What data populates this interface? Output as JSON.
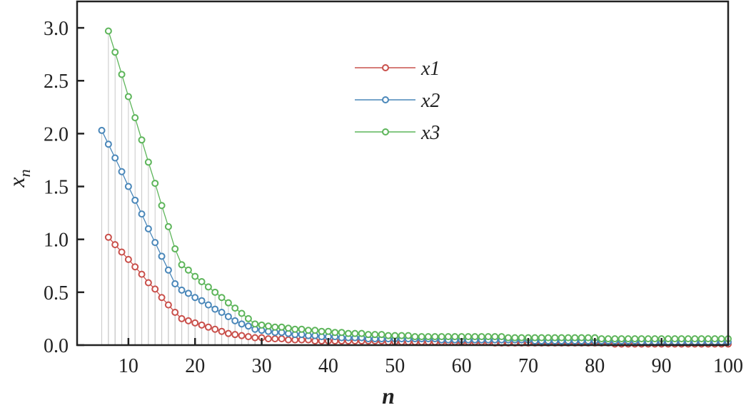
{
  "chart_data": {
    "type": "line",
    "title": "",
    "xlabel": "n",
    "ylabel": "x_n",
    "xlim": [
      2.3,
      100
    ],
    "ylim": [
      0,
      3.25
    ],
    "xticks": [
      10,
      20,
      30,
      40,
      50,
      60,
      70,
      80,
      90,
      100
    ],
    "yticks": [
      "0.0",
      "0.5",
      "1.0",
      "1.5",
      "2.0",
      "2.5",
      "3.0"
    ],
    "grid": false,
    "legend_position": "top-center",
    "drop_lines": true,
    "series": [
      {
        "name": "x1",
        "color": "#c9504b",
        "marker": "open-circle",
        "x_start": 7,
        "values": [
          1.02,
          0.95,
          0.88,
          0.81,
          0.74,
          0.67,
          0.59,
          0.53,
          0.45,
          0.38,
          0.31,
          0.25,
          0.23,
          0.21,
          0.19,
          0.17,
          0.15,
          0.13,
          0.11,
          0.1,
          0.09,
          0.08,
          0.07,
          0.07,
          0.06,
          0.06,
          0.06,
          0.05,
          0.05,
          0.05,
          0.05,
          0.04,
          0.04,
          0.04,
          0.04,
          0.04,
          0.04,
          0.04,
          0.04,
          0.04,
          0.04,
          0.04,
          0.03,
          0.03,
          0.03,
          0.03,
          0.03,
          0.03,
          0.03,
          0.03,
          0.03,
          0.03,
          0.03,
          0.03,
          0.03,
          0.03,
          0.03,
          0.03,
          0.02,
          0.02,
          0.02,
          0.02,
          0.02,
          0.02,
          0.02,
          0.02,
          0.02,
          0.02,
          0.02,
          0.02,
          0.02,
          0.02,
          0.02,
          0.02,
          0.02,
          0.02,
          0.01,
          0.01,
          0.01,
          0.01,
          0.01,
          0.01,
          0.01,
          0.01,
          0.01,
          0.01,
          0.01,
          0.01,
          0.01,
          0.01,
          0.01,
          0.01,
          0.01,
          0.01
        ]
      },
      {
        "name": "x2",
        "color": "#4a87b9",
        "marker": "open-circle",
        "x_start": 6,
        "values": [
          2.03,
          1.9,
          1.77,
          1.64,
          1.5,
          1.37,
          1.24,
          1.1,
          0.97,
          0.84,
          0.71,
          0.58,
          0.52,
          0.49,
          0.45,
          0.42,
          0.38,
          0.34,
          0.31,
          0.27,
          0.23,
          0.2,
          0.18,
          0.15,
          0.14,
          0.13,
          0.12,
          0.12,
          0.11,
          0.1,
          0.1,
          0.09,
          0.09,
          0.08,
          0.08,
          0.08,
          0.07,
          0.07,
          0.07,
          0.07,
          0.06,
          0.06,
          0.06,
          0.06,
          0.06,
          0.06,
          0.06,
          0.06,
          0.06,
          0.06,
          0.06,
          0.05,
          0.05,
          0.05,
          0.05,
          0.05,
          0.05,
          0.05,
          0.05,
          0.05,
          0.05,
          0.05,
          0.05,
          0.05,
          0.05,
          0.04,
          0.04,
          0.04,
          0.04,
          0.04,
          0.04,
          0.04,
          0.04,
          0.04,
          0.04,
          0.04,
          0.04,
          0.04,
          0.04,
          0.04,
          0.04,
          0.03,
          0.03,
          0.03,
          0.03,
          0.03,
          0.03,
          0.03,
          0.03,
          0.03,
          0.03,
          0.03,
          0.03,
          0.03,
          0.03
        ]
      },
      {
        "name": "x3",
        "color": "#5db55a",
        "marker": "open-circle",
        "x_start": 7,
        "values": [
          2.97,
          2.77,
          2.56,
          2.35,
          2.15,
          1.94,
          1.73,
          1.53,
          1.32,
          1.12,
          0.91,
          0.76,
          0.71,
          0.65,
          0.6,
          0.55,
          0.5,
          0.45,
          0.4,
          0.35,
          0.3,
          0.25,
          0.2,
          0.19,
          0.18,
          0.17,
          0.17,
          0.16,
          0.15,
          0.15,
          0.14,
          0.14,
          0.13,
          0.13,
          0.12,
          0.12,
          0.11,
          0.11,
          0.11,
          0.1,
          0.1,
          0.1,
          0.09,
          0.09,
          0.09,
          0.09,
          0.08,
          0.08,
          0.08,
          0.08,
          0.08,
          0.08,
          0.08,
          0.08,
          0.08,
          0.08,
          0.08,
          0.08,
          0.08,
          0.08,
          0.07,
          0.07,
          0.07,
          0.07,
          0.07,
          0.07,
          0.07,
          0.07,
          0.07,
          0.07,
          0.07,
          0.07,
          0.07,
          0.07,
          0.06,
          0.06,
          0.06,
          0.06,
          0.06,
          0.06,
          0.06,
          0.06,
          0.06,
          0.06,
          0.06,
          0.06,
          0.06,
          0.06,
          0.06,
          0.06,
          0.06,
          0.06,
          0.06,
          0.06
        ]
      }
    ]
  }
}
